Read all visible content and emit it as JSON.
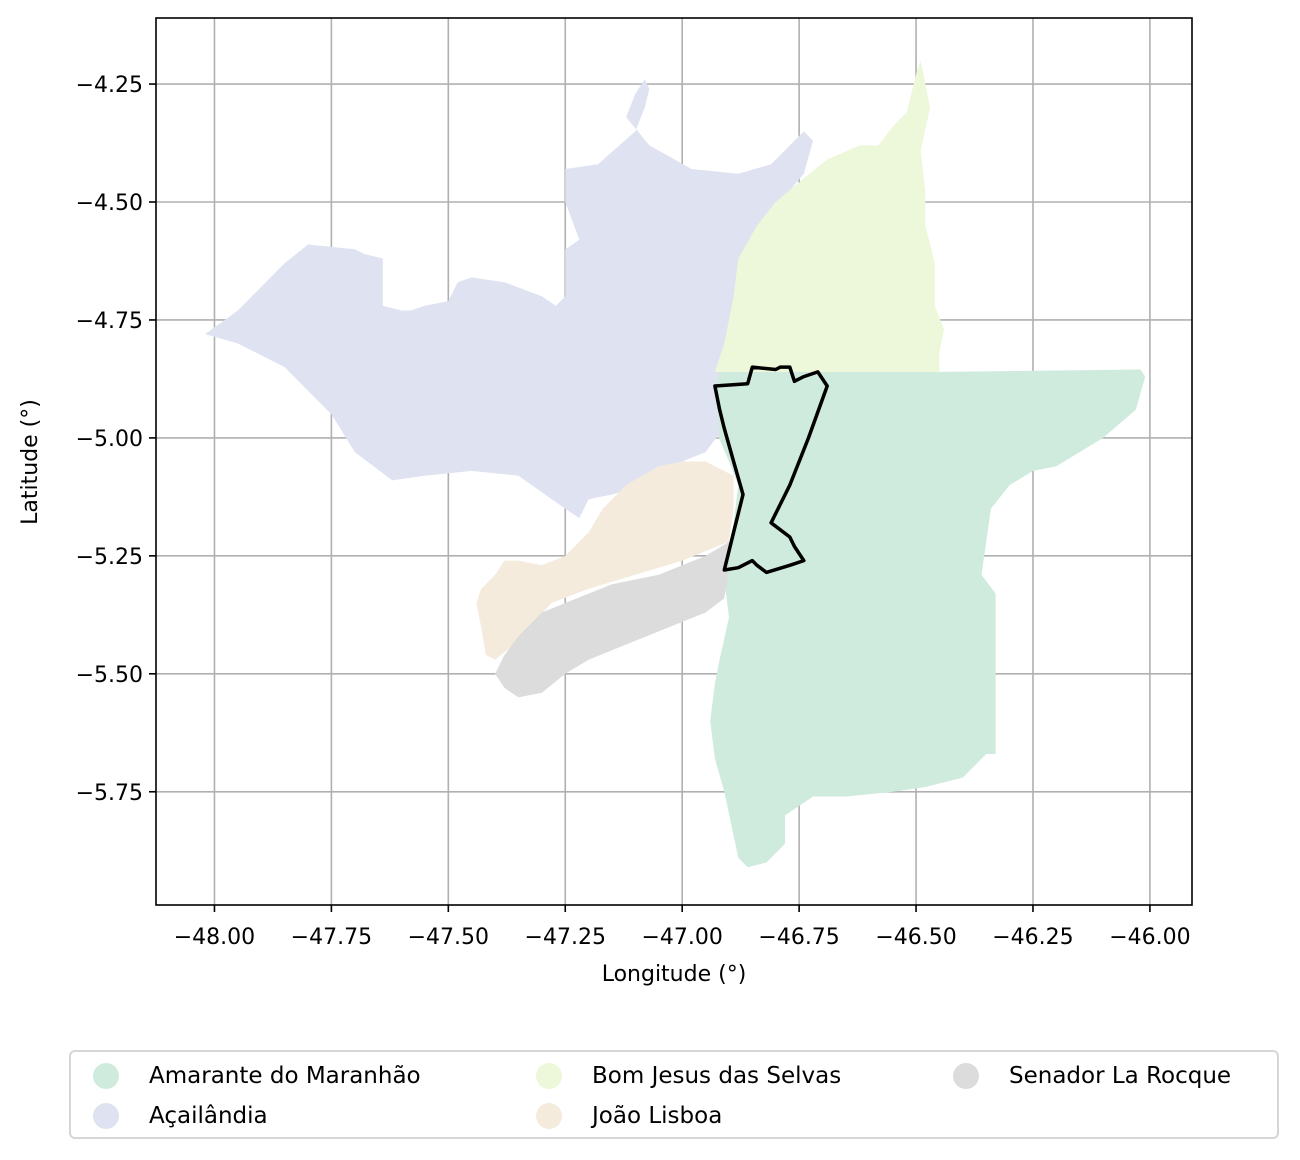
{
  "map": {
    "xlabel": "Longitude (°)",
    "ylabel": "Latitude (°)",
    "xlim": [
      -48.125,
      -45.91
    ],
    "ylim": [
      -5.99,
      -4.11
    ],
    "x_ticks": [
      -48.0,
      -47.75,
      -47.5,
      -47.25,
      -47.0,
      -46.75,
      -46.5,
      -46.25,
      -46.0
    ],
    "x_tick_labels": [
      "−48.00",
      "−47.75",
      "−47.50",
      "−47.25",
      "−47.00",
      "−46.75",
      "−46.50",
      "−46.25",
      "−46.00"
    ],
    "y_ticks": [
      -4.25,
      -4.5,
      -4.75,
      -5.0,
      -5.25,
      -5.5,
      -5.75
    ],
    "y_tick_labels": [
      "−4.25",
      "−4.50",
      "−4.75",
      "−5.00",
      "−5.25",
      "−5.50",
      "−5.75"
    ],
    "grid": true,
    "legend_placement": "bottom-center",
    "highlight_outline_color": "#000000"
  },
  "regions": [
    {
      "name": "Amarante do Maranhão",
      "color": "#cfebdd",
      "polygon": [
        [
          -46.93,
          -4.86
        ],
        [
          -46.45,
          -4.86
        ],
        [
          -46.02,
          -4.855
        ],
        [
          -46.01,
          -4.87
        ],
        [
          -46.03,
          -4.94
        ],
        [
          -46.1,
          -5.0
        ],
        [
          -46.2,
          -5.06
        ],
        [
          -46.25,
          -5.07
        ],
        [
          -46.3,
          -5.1
        ],
        [
          -46.34,
          -5.15
        ],
        [
          -46.35,
          -5.22
        ],
        [
          -46.36,
          -5.29
        ],
        [
          -46.33,
          -5.33
        ],
        [
          -46.33,
          -5.67
        ],
        [
          -46.35,
          -5.67
        ],
        [
          -46.4,
          -5.72
        ],
        [
          -46.48,
          -5.74
        ],
        [
          -46.55,
          -5.75
        ],
        [
          -46.65,
          -5.76
        ],
        [
          -46.72,
          -5.76
        ],
        [
          -46.78,
          -5.8
        ],
        [
          -46.78,
          -5.86
        ],
        [
          -46.82,
          -5.9
        ],
        [
          -46.86,
          -5.91
        ],
        [
          -46.88,
          -5.89
        ],
        [
          -46.91,
          -5.75
        ],
        [
          -46.93,
          -5.68
        ],
        [
          -46.94,
          -5.6
        ],
        [
          -46.93,
          -5.52
        ],
        [
          -46.92,
          -5.47
        ],
        [
          -46.9,
          -5.38
        ],
        [
          -46.91,
          -5.3
        ],
        [
          -46.9,
          -5.24
        ],
        [
          -46.89,
          -5.18
        ],
        [
          -46.88,
          -5.1
        ],
        [
          -46.9,
          -5.05
        ],
        [
          -46.93,
          -4.98
        ]
      ]
    },
    {
      "name": "Açailândia",
      "color": "#dfe3f1",
      "polygon": [
        [
          -48.02,
          -4.78
        ],
        [
          -47.95,
          -4.73
        ],
        [
          -47.9,
          -4.68
        ],
        [
          -47.85,
          -4.63
        ],
        [
          -47.8,
          -4.59
        ],
        [
          -47.7,
          -4.6
        ],
        [
          -47.68,
          -4.61
        ],
        [
          -47.64,
          -4.62
        ],
        [
          -47.64,
          -4.72
        ],
        [
          -47.6,
          -4.73
        ],
        [
          -47.58,
          -4.73
        ],
        [
          -47.55,
          -4.72
        ],
        [
          -47.5,
          -4.71
        ],
        [
          -47.48,
          -4.67
        ],
        [
          -47.45,
          -4.66
        ],
        [
          -47.38,
          -4.67
        ],
        [
          -47.3,
          -4.7
        ],
        [
          -47.27,
          -4.72
        ],
        [
          -47.25,
          -4.7
        ],
        [
          -47.25,
          -4.6
        ],
        [
          -47.22,
          -4.58
        ],
        [
          -47.25,
          -4.5
        ],
        [
          -47.25,
          -4.43
        ],
        [
          -47.18,
          -4.42
        ],
        [
          -47.1,
          -4.35
        ],
        [
          -47.08,
          -4.3
        ],
        [
          -47.07,
          -4.26
        ],
        [
          -47.08,
          -4.24
        ],
        [
          -47.1,
          -4.27
        ],
        [
          -47.12,
          -4.32
        ],
        [
          -47.07,
          -4.38
        ],
        [
          -46.98,
          -4.43
        ],
        [
          -46.88,
          -4.44
        ],
        [
          -46.81,
          -4.42
        ],
        [
          -46.74,
          -4.35
        ],
        [
          -46.72,
          -4.37
        ],
        [
          -46.74,
          -4.44
        ],
        [
          -46.79,
          -4.5
        ],
        [
          -46.85,
          -4.6
        ],
        [
          -46.88,
          -4.7
        ],
        [
          -46.9,
          -4.8
        ],
        [
          -46.93,
          -4.89
        ],
        [
          -46.92,
          -4.99
        ],
        [
          -46.95,
          -5.03
        ],
        [
          -47.0,
          -5.05
        ],
        [
          -47.08,
          -5.1
        ],
        [
          -47.15,
          -5.12
        ],
        [
          -47.2,
          -5.13
        ],
        [
          -47.22,
          -5.17
        ],
        [
          -47.25,
          -5.15
        ],
        [
          -47.35,
          -5.08
        ],
        [
          -47.45,
          -5.07
        ],
        [
          -47.55,
          -5.08
        ],
        [
          -47.62,
          -5.09
        ],
        [
          -47.7,
          -5.03
        ],
        [
          -47.75,
          -4.95
        ],
        [
          -47.8,
          -4.9
        ],
        [
          -47.85,
          -4.85
        ],
        [
          -47.95,
          -4.8
        ]
      ]
    },
    {
      "name": "Bom Jesus das Selvas",
      "color": "#edf7d9",
      "polygon": [
        [
          -46.74,
          -4.45
        ],
        [
          -46.69,
          -4.41
        ],
        [
          -46.62,
          -4.38
        ],
        [
          -46.58,
          -4.38
        ],
        [
          -46.55,
          -4.34
        ],
        [
          -46.52,
          -4.31
        ],
        [
          -46.5,
          -4.23
        ],
        [
          -46.49,
          -4.2
        ],
        [
          -46.47,
          -4.3
        ],
        [
          -46.49,
          -4.39
        ],
        [
          -46.48,
          -4.48
        ],
        [
          -46.48,
          -4.55
        ],
        [
          -46.46,
          -4.63
        ],
        [
          -46.46,
          -4.72
        ],
        [
          -46.44,
          -4.77
        ],
        [
          -46.45,
          -4.82
        ],
        [
          -46.45,
          -4.86
        ],
        [
          -46.93,
          -4.86
        ],
        [
          -46.91,
          -4.8
        ],
        [
          -46.89,
          -4.7
        ],
        [
          -46.88,
          -4.62
        ],
        [
          -46.84,
          -4.55
        ],
        [
          -46.8,
          -4.5
        ]
      ]
    },
    {
      "name": "João Lisboa",
      "color": "#f5ebdd",
      "polygon": [
        [
          -46.89,
          -5.08
        ],
        [
          -46.95,
          -5.05
        ],
        [
          -47.0,
          -5.05
        ],
        [
          -47.05,
          -5.06
        ],
        [
          -47.12,
          -5.1
        ],
        [
          -47.17,
          -5.15
        ],
        [
          -47.2,
          -5.2
        ],
        [
          -47.25,
          -5.25
        ],
        [
          -47.3,
          -5.27
        ],
        [
          -47.35,
          -5.26
        ],
        [
          -47.38,
          -5.26
        ],
        [
          -47.4,
          -5.29
        ],
        [
          -47.43,
          -5.32
        ],
        [
          -47.44,
          -5.35
        ],
        [
          -47.43,
          -5.4
        ],
        [
          -47.42,
          -5.46
        ],
        [
          -47.4,
          -5.47
        ],
        [
          -47.35,
          -5.43
        ],
        [
          -47.28,
          -5.35
        ],
        [
          -47.2,
          -5.32
        ],
        [
          -47.1,
          -5.29
        ],
        [
          -47.0,
          -5.26
        ],
        [
          -46.95,
          -5.24
        ],
        [
          -46.9,
          -5.22
        ],
        [
          -46.89,
          -5.15
        ]
      ]
    },
    {
      "name": "Senador La Rocque",
      "color": "#dcdcdc",
      "polygon": [
        [
          -46.9,
          -5.22
        ],
        [
          -46.95,
          -5.25
        ],
        [
          -47.0,
          -5.27
        ],
        [
          -47.05,
          -5.29
        ],
        [
          -47.1,
          -5.3
        ],
        [
          -47.15,
          -5.31
        ],
        [
          -47.2,
          -5.33
        ],
        [
          -47.25,
          -5.35
        ],
        [
          -47.3,
          -5.37
        ],
        [
          -47.35,
          -5.42
        ],
        [
          -47.38,
          -5.46
        ],
        [
          -47.4,
          -5.5
        ],
        [
          -47.38,
          -5.53
        ],
        [
          -47.35,
          -5.55
        ],
        [
          -47.3,
          -5.54
        ],
        [
          -47.25,
          -5.5
        ],
        [
          -47.2,
          -5.47
        ],
        [
          -47.15,
          -5.45
        ],
        [
          -47.1,
          -5.43
        ],
        [
          -47.05,
          -5.41
        ],
        [
          -47.0,
          -5.39
        ],
        [
          -46.95,
          -5.37
        ],
        [
          -46.91,
          -5.34
        ],
        [
          -46.9,
          -5.28
        ]
      ]
    }
  ],
  "highlight_outline": [
    [
      -46.93,
      -4.89
    ],
    [
      -46.86,
      -4.885
    ],
    [
      -46.85,
      -4.85
    ],
    [
      -46.8,
      -4.855
    ],
    [
      -46.79,
      -4.85
    ],
    [
      -46.77,
      -4.85
    ],
    [
      -46.76,
      -4.88
    ],
    [
      -46.74,
      -4.87
    ],
    [
      -46.71,
      -4.86
    ],
    [
      -46.69,
      -4.89
    ],
    [
      -46.73,
      -5.0
    ],
    [
      -46.77,
      -5.1
    ],
    [
      -46.81,
      -5.18
    ],
    [
      -46.77,
      -5.21
    ],
    [
      -46.76,
      -5.23
    ],
    [
      -46.74,
      -5.26
    ],
    [
      -46.77,
      -5.27
    ],
    [
      -46.82,
      -5.285
    ],
    [
      -46.84,
      -5.27
    ],
    [
      -46.85,
      -5.26
    ],
    [
      -46.88,
      -5.275
    ],
    [
      -46.91,
      -5.28
    ],
    [
      -46.9,
      -5.24
    ],
    [
      -46.89,
      -5.2
    ],
    [
      -46.88,
      -5.16
    ],
    [
      -46.87,
      -5.12
    ],
    [
      -46.89,
      -5.05
    ],
    [
      -46.91,
      -4.98
    ],
    [
      -46.92,
      -4.94
    ]
  ],
  "legend": {
    "items": [
      {
        "label": "Amarante do Maranhão",
        "color": "#cfebdd"
      },
      {
        "label": "Açailândia",
        "color": "#dfe3f1"
      },
      {
        "label": "Bom Jesus das Selvas",
        "color": "#edf7d9"
      },
      {
        "label": "João Lisboa",
        "color": "#f5ebdd"
      },
      {
        "label": "Senador La Rocque",
        "color": "#dcdcdc"
      }
    ]
  }
}
